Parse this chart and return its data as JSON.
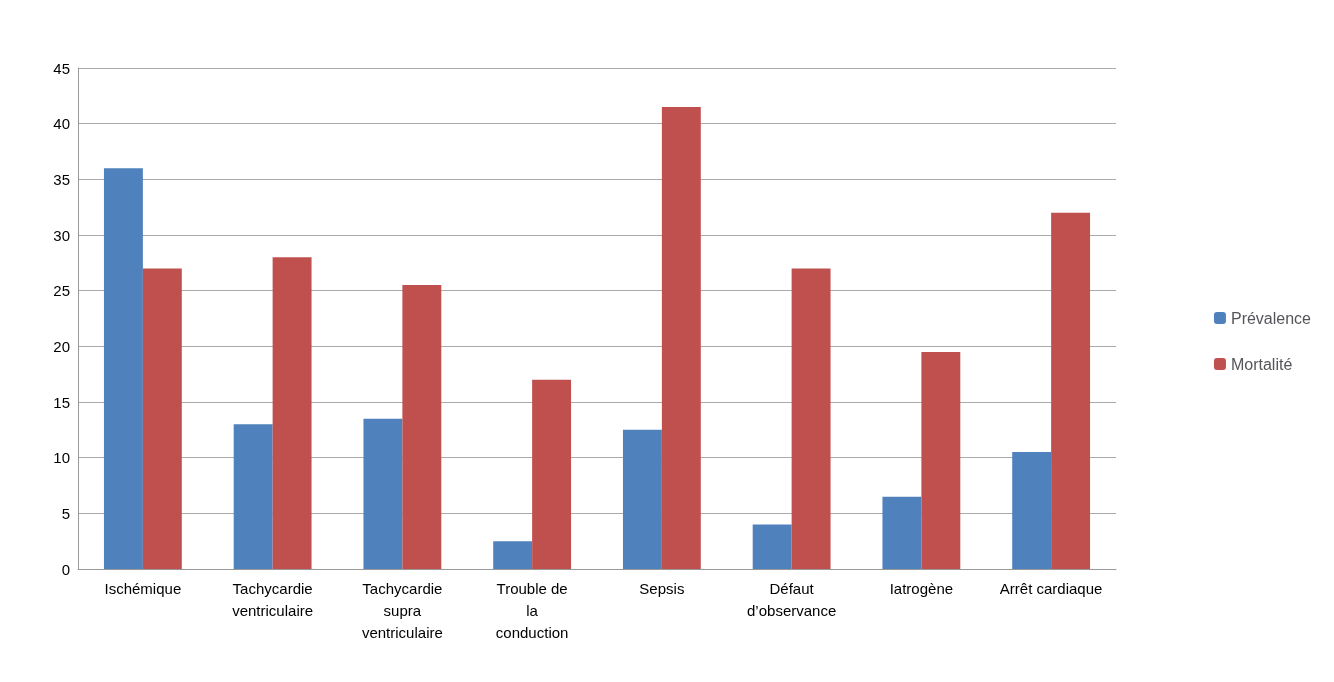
{
  "chart_data": {
    "type": "bar",
    "categories": [
      "Ischémique",
      "Tachycardie\nventriculaire",
      "Tachycardie\nsupra\nventriculaire",
      "Trouble de\nla\nconduction",
      "Sepsis",
      "Défaut\nd’observance",
      "Iatrogène",
      "Arrêt cardiaque"
    ],
    "series": [
      {
        "name": "Prévalence",
        "color": "#4f81bd",
        "values": [
          36,
          13,
          13.5,
          2.5,
          12.5,
          4,
          6.5,
          10.5
        ]
      },
      {
        "name": "Mortalité",
        "color": "#c0504d",
        "values": [
          27,
          28,
          25.5,
          17,
          41.5,
          27,
          19.5,
          32
        ]
      }
    ],
    "ylim": [
      0,
      45
    ],
    "yticks": [
      0,
      5,
      10,
      15,
      20,
      25,
      30,
      35,
      40,
      45
    ],
    "grid": "y",
    "legend": "right"
  }
}
